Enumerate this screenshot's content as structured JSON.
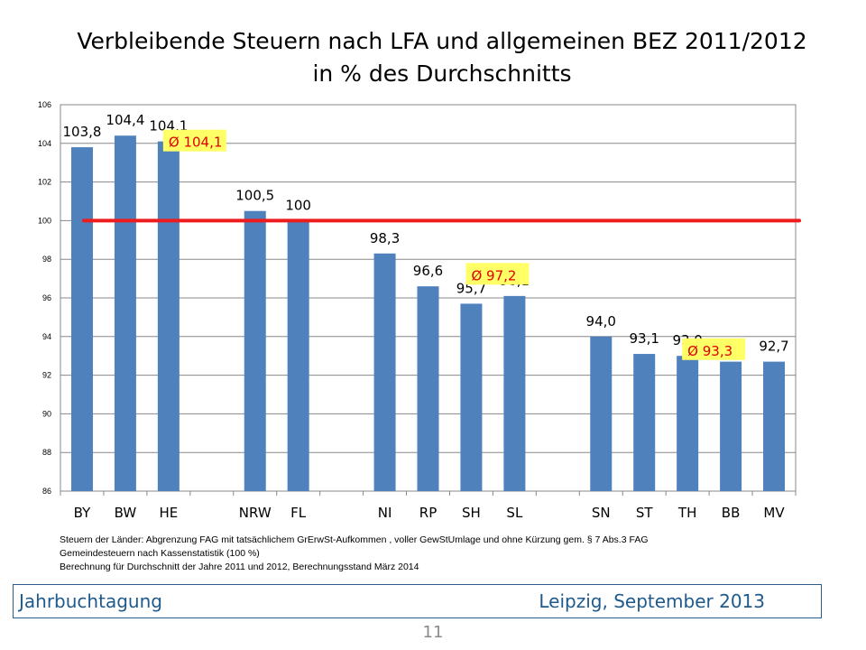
{
  "header": {
    "title_line1": "Verbleibende Steuern nach LFA und allgemeinen BEZ 2011/2012",
    "title_line2": "in % des Durchschnitts"
  },
  "chart_data": {
    "type": "bar",
    "categories": [
      "BY",
      "BW",
      "HE",
      "",
      "NRW",
      "FL",
      "",
      "NI",
      "RP",
      "SH",
      "SL",
      "",
      "SN",
      "ST",
      "TH",
      "BB",
      "MV"
    ],
    "values": [
      103.8,
      104.4,
      104.1,
      null,
      100.5,
      100,
      null,
      98.3,
      96.6,
      95.7,
      96.1,
      null,
      94.0,
      93.1,
      93.0,
      92.7,
      92.7
    ],
    "data_labels": [
      "103,8",
      "104,4",
      "104,1",
      "",
      "100,5",
      "100",
      "",
      "98,3",
      "96,6",
      "95,7",
      "96,1",
      "",
      "94,0",
      "93,1",
      "93,0",
      "92,7",
      "92,7"
    ],
    "ylim": [
      86,
      106
    ],
    "yticks": [
      86,
      88,
      90,
      92,
      94,
      96,
      98,
      100,
      102,
      104,
      106
    ],
    "grid": true,
    "bar_color": "#4f81bd",
    "reference_line": {
      "value": 100,
      "color": "#ee1c1c"
    },
    "annotations": [
      {
        "text": "Ø 104,1",
        "after_category": 1,
        "value": 104.1
      },
      {
        "text": "Ø 97,2",
        "after_category": 8,
        "value": 97.2
      },
      {
        "text": "Ø 93,3",
        "after_category": 13,
        "value": 93.3
      }
    ],
    "annotation_bg": "#ffff66",
    "annotation_color": "#e00000"
  },
  "notes": {
    "line1": "Steuern der Länder: Abgrenzung FAG mit tatsächlichem GrErwSt-Aufkommen , voller GewStUmlage und ohne Kürzung gem. § 7 Abs.3 FAG",
    "line2": "Gemeindesteuern nach Kassenstatistik (100 %)",
    "line3": "Berechnung für Durchschnitt der Jahre 2011  und 2012,  Berechnungsstand März 2014"
  },
  "footer": {
    "left": "Jahrbuchtagung",
    "right": "Leipzig, September 2013"
  },
  "page_number": "11"
}
